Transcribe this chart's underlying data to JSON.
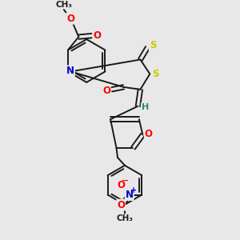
{
  "bg_color": "#e8e8e8",
  "bond_color": "#1a1a1a",
  "bond_width": 1.4,
  "atom_colors": {
    "O": "#ff0000",
    "N": "#0000cc",
    "S": "#cccc00",
    "H": "#2a8a7a",
    "C": "#1a1a1a"
  },
  "figsize": [
    3.0,
    3.0
  ],
  "dpi": 100
}
